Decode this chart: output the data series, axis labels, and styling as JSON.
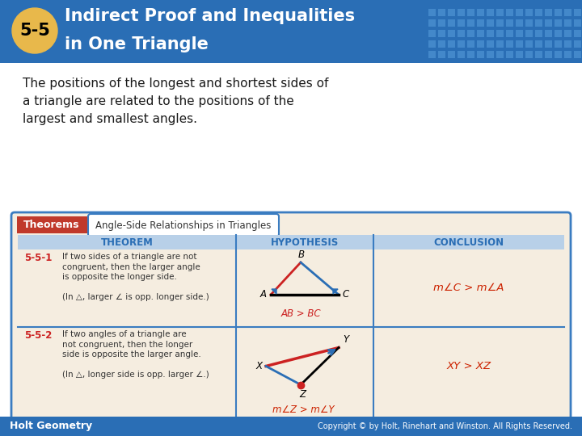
{
  "title_number": "5-5",
  "title_line1": "Indirect Proof and Inequalities",
  "title_line2": "in One Triangle",
  "header_bg": "#2a6eb5",
  "header_dot_color": "#e8b84b",
  "body_text_lines": [
    "The positions of the longest and shortest sides of",
    "a triangle are related to the positions of the",
    "largest and smallest angles."
  ],
  "theorems_label": "Theorems",
  "theorems_label_bg": "#c0392b",
  "theorems_subtitle": "Angle-Side Relationships in Triangles",
  "table_bg": "#f5ede0",
  "table_border": "#3a7cc1",
  "table_header_bg": "#b8d0e8",
  "col_headers": [
    "THEOREM",
    "HYPOTHESIS",
    "CONCLUSION"
  ],
  "row1_num": "5-5-1",
  "row1_lines": [
    "If two sides of a triangle are not",
    "congruent, then the larger angle",
    "is opposite the longer side.",
    "",
    "(In △, larger ∠ is opp. longer side.)"
  ],
  "row1_conclusion": "m∠C > m∠A",
  "row2_num": "5-5-2",
  "row2_lines": [
    "If two angles of a triangle are",
    "not congruent, then the longer",
    "side is opposite the larger angle.",
    "",
    "(In △, longer side is opp. larger ∠.)"
  ],
  "row2_conclusion": "XY > XZ",
  "row2_conclusion2": "m∠Z > m∠Y",
  "footer_bg": "#2a6eb5",
  "footer_left": "Holt Geometry",
  "footer_right": "Copyright © by Holt, Rinehart and Winston. All Rights Reserved.",
  "red_color": "#cc2222",
  "blue_color": "#2a6eb5",
  "dark_red": "#c0392b",
  "conclusion_red": "#cc2200",
  "dot_grid_color": "#4a8fd0"
}
